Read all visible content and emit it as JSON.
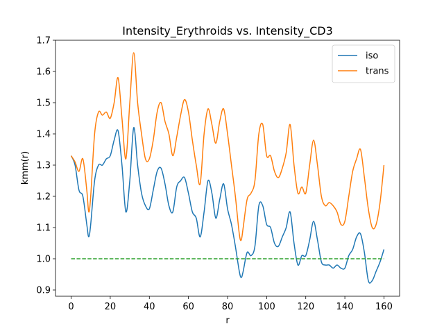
{
  "chart_data": {
    "type": "line",
    "title": "Intensity_Erythroids vs. Intensity_CD3",
    "xlabel": "r",
    "ylabel": "kmm(r)",
    "xlim": [
      -8,
      168
    ],
    "ylim": [
      0.88,
      1.7
    ],
    "xticks": [
      0,
      20,
      40,
      60,
      80,
      100,
      120,
      140,
      160
    ],
    "yticks": [
      0.9,
      1.0,
      1.1,
      1.2,
      1.3,
      1.4,
      1.5,
      1.6,
      1.7
    ],
    "xtick_labels": [
      "0",
      "20",
      "40",
      "60",
      "80",
      "100",
      "120",
      "140",
      "160"
    ],
    "ytick_labels": [
      "0.9",
      "1.0",
      "1.1",
      "1.2",
      "1.3",
      "1.4",
      "1.5",
      "1.6",
      "1.7"
    ],
    "grid": false,
    "legend_position": "top-right",
    "series": [
      {
        "name": "iso",
        "color": "#1f77b4",
        "style": "solid",
        "x": [
          0,
          2,
          4,
          6,
          8,
          9,
          10,
          12,
          14,
          16,
          18,
          20,
          22,
          24,
          26,
          28,
          30,
          32,
          34,
          36,
          38,
          40,
          42,
          44,
          46,
          48,
          50,
          52,
          54,
          56,
          58,
          60,
          62,
          64,
          66,
          68,
          70,
          72,
          74,
          76,
          78,
          80,
          82,
          84,
          86,
          87,
          88,
          90,
          92,
          94,
          96,
          98,
          100,
          102,
          104,
          106,
          108,
          110,
          112,
          114,
          116,
          118,
          120,
          122,
          124,
          126,
          128,
          130,
          132,
          134,
          136,
          138,
          140,
          142,
          144,
          146,
          148,
          150,
          152,
          154,
          156,
          158,
          160
        ],
        "y": [
          1.33,
          1.3,
          1.22,
          1.2,
          1.11,
          1.07,
          1.11,
          1.25,
          1.3,
          1.3,
          1.32,
          1.33,
          1.38,
          1.41,
          1.3,
          1.15,
          1.25,
          1.42,
          1.3,
          1.21,
          1.17,
          1.16,
          1.22,
          1.28,
          1.29,
          1.24,
          1.17,
          1.15,
          1.23,
          1.25,
          1.26,
          1.21,
          1.15,
          1.13,
          1.07,
          1.15,
          1.25,
          1.21,
          1.13,
          1.19,
          1.24,
          1.16,
          1.11,
          1.04,
          0.96,
          0.94,
          0.96,
          1.02,
          1.01,
          1.04,
          1.17,
          1.17,
          1.11,
          1.1,
          1.05,
          1.04,
          1.07,
          1.1,
          1.15,
          1.05,
          0.98,
          1.01,
          1.01,
          1.06,
          1.12,
          1.06,
          0.99,
          0.98,
          0.98,
          0.97,
          0.98,
          0.97,
          0.97,
          1.01,
          1.03,
          1.07,
          1.08,
          1.02,
          0.93,
          0.93,
          0.96,
          0.99,
          1.03
        ]
      },
      {
        "name": "trans",
        "color": "#ff7f0e",
        "style": "solid",
        "x": [
          0,
          2,
          4,
          6,
          8,
          9,
          10,
          12,
          14,
          16,
          18,
          20,
          22,
          24,
          26,
          28,
          30,
          32,
          34,
          36,
          38,
          40,
          42,
          44,
          46,
          48,
          50,
          52,
          54,
          56,
          58,
          60,
          62,
          64,
          66,
          68,
          70,
          72,
          74,
          76,
          78,
          80,
          82,
          84,
          86,
          87,
          88,
          90,
          92,
          94,
          96,
          98,
          100,
          102,
          104,
          106,
          108,
          110,
          112,
          114,
          116,
          118,
          120,
          122,
          124,
          126,
          128,
          130,
          132,
          134,
          136,
          138,
          140,
          142,
          144,
          146,
          148,
          150,
          152,
          154,
          156,
          158,
          160
        ],
        "y": [
          1.33,
          1.31,
          1.28,
          1.32,
          1.22,
          1.15,
          1.2,
          1.4,
          1.47,
          1.46,
          1.47,
          1.45,
          1.5,
          1.58,
          1.45,
          1.32,
          1.5,
          1.66,
          1.5,
          1.4,
          1.32,
          1.32,
          1.38,
          1.47,
          1.5,
          1.44,
          1.4,
          1.33,
          1.39,
          1.46,
          1.51,
          1.47,
          1.38,
          1.3,
          1.24,
          1.4,
          1.48,
          1.43,
          1.37,
          1.44,
          1.48,
          1.4,
          1.3,
          1.2,
          1.08,
          1.06,
          1.1,
          1.19,
          1.21,
          1.25,
          1.4,
          1.43,
          1.33,
          1.33,
          1.28,
          1.26,
          1.29,
          1.34,
          1.43,
          1.3,
          1.21,
          1.23,
          1.21,
          1.3,
          1.38,
          1.3,
          1.2,
          1.17,
          1.18,
          1.17,
          1.15,
          1.11,
          1.12,
          1.2,
          1.28,
          1.32,
          1.35,
          1.26,
          1.16,
          1.1,
          1.11,
          1.18,
          1.3
        ]
      },
      {
        "name": "",
        "color": "#2ca02c",
        "style": "dashed",
        "x": [
          0,
          160
        ],
        "y": [
          1.0,
          1.0
        ]
      }
    ]
  }
}
